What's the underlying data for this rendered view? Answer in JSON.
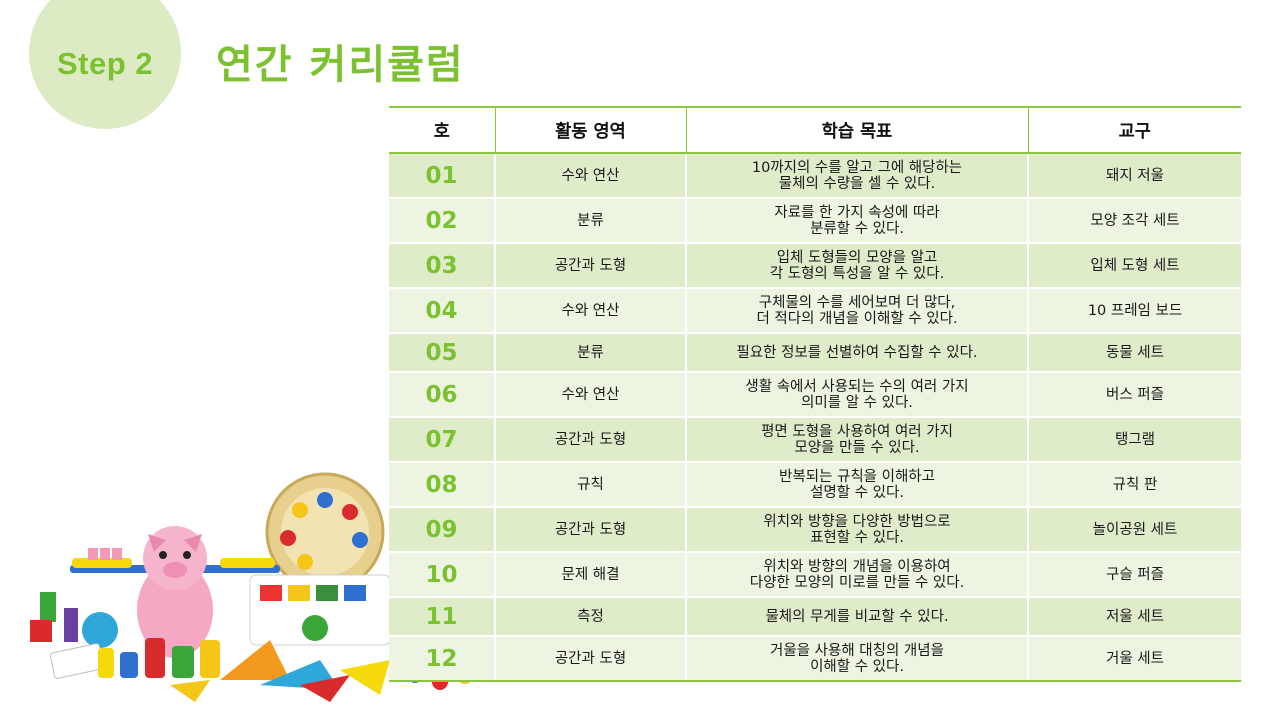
{
  "header": {
    "step_label": "Step 2",
    "title": "연간 커리큘럼"
  },
  "table": {
    "columns": [
      "호",
      "활동 영역",
      "학습 목표",
      "교구"
    ],
    "rows": [
      {
        "no": "01",
        "area": "수와 연산",
        "goal": "10까지의 수를 알고 그에 해당하는\n물체의 수량을 셀 수 있다.",
        "tool": "돼지 저울"
      },
      {
        "no": "02",
        "area": "분류",
        "goal": "자료를 한 가지 속성에 따라\n분류할 수 있다.",
        "tool": "모양 조각 세트"
      },
      {
        "no": "03",
        "area": "공간과 도형",
        "goal": "입체 도형들의 모양을 알고\n각 도형의 특성을 알 수 있다.",
        "tool": "입체 도형 세트"
      },
      {
        "no": "04",
        "area": "수와 연산",
        "goal": "구체물의 수를 세어보며 더 많다,\n더 적다의 개념을 이해할 수 있다.",
        "tool": "10 프레임 보드"
      },
      {
        "no": "05",
        "area": "분류",
        "goal": "필요한 정보를 선별하여 수집할 수 있다.",
        "tool": "동물 세트"
      },
      {
        "no": "06",
        "area": "수와 연산",
        "goal": "생활 속에서 사용되는 수의 여러 가지\n의미를 알 수 있다.",
        "tool": "버스 퍼즐"
      },
      {
        "no": "07",
        "area": "공간과 도형",
        "goal": "평면 도형을 사용하여 여러 가지\n모양을 만들 수 있다.",
        "tool": "탱그램"
      },
      {
        "no": "08",
        "area": "규칙",
        "goal": "반복되는 규칙을 이해하고\n설명할 수 있다.",
        "tool": "규칙 판"
      },
      {
        "no": "09",
        "area": "공간과 도형",
        "goal": "위치와 방향을 다양한 방법으로\n표현할 수 있다.",
        "tool": "놀이공원 세트"
      },
      {
        "no": "10",
        "area": "문제 해결",
        "goal": "위치와 방향의 개념을 이용하여\n다양한 모양의 미로를 만들 수 있다.",
        "tool": "구슬 퍼즐"
      },
      {
        "no": "11",
        "area": "측정",
        "goal": "물체의 무게를 비교할 수 있다.",
        "tool": "저울 세트"
      },
      {
        "no": "12",
        "area": "공간과 도형",
        "goal": "거울을 사용해 대칭의 개념을\n이해할 수 있다.",
        "tool": "거울 세트"
      }
    ]
  },
  "colors": {
    "accent": "#7cc230",
    "row_dark": "#dfecca",
    "row_light": "#edf4e2",
    "circle": "#dcebc3"
  }
}
